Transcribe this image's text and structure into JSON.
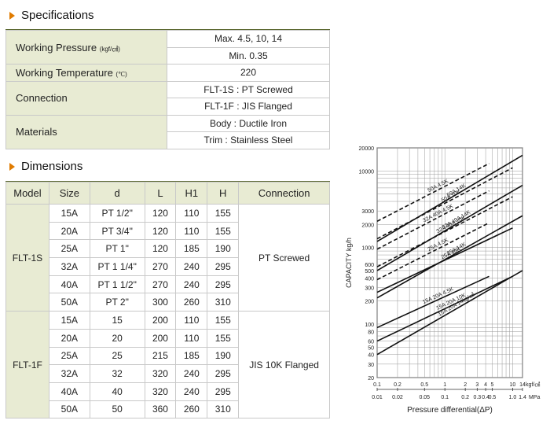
{
  "specifications": {
    "title": "Specifications",
    "rows": [
      {
        "label": "Working Pressure",
        "unit": "(kgf/㎠)",
        "values": [
          "Max. 4.5, 10, 14",
          "Min. 0.35"
        ]
      },
      {
        "label": "Working Temperature",
        "unit": "(℃)",
        "values": [
          "220"
        ]
      },
      {
        "label": "Connection",
        "unit": "",
        "values": [
          "FLT-1S : PT Screwed",
          "FLT-1F : JIS Flanged"
        ]
      },
      {
        "label": "Materials",
        "unit": "",
        "values": [
          "Body : Ductile Iron",
          "Trim : Stainless Steel"
        ]
      }
    ]
  },
  "dimensions": {
    "title": "Dimensions",
    "headers": [
      "Model",
      "Size",
      "d",
      "L",
      "H1",
      "H",
      "Connection"
    ],
    "groups": [
      {
        "model": "FLT-1S",
        "connection": "PT Screwed",
        "rows": [
          [
            "15A",
            "PT 1/2\"",
            "120",
            "110",
            "155"
          ],
          [
            "20A",
            "PT 3/4\"",
            "120",
            "110",
            "155"
          ],
          [
            "25A",
            "PT 1\"",
            "120",
            "185",
            "190"
          ],
          [
            "32A",
            "PT 1 1/4\"",
            "270",
            "240",
            "295"
          ],
          [
            "40A",
            "PT 1 1/2\"",
            "270",
            "240",
            "295"
          ],
          [
            "50A",
            "PT 2\"",
            "300",
            "260",
            "310"
          ]
        ]
      },
      {
        "model": "FLT-1F",
        "connection": "JIS 10K Flanged",
        "rows": [
          [
            "15A",
            "15",
            "200",
            "110",
            "155"
          ],
          [
            "20A",
            "20",
            "200",
            "110",
            "155"
          ],
          [
            "25A",
            "25",
            "215",
            "185",
            "190"
          ],
          [
            "32A",
            "32",
            "320",
            "240",
            "295"
          ],
          [
            "40A",
            "40",
            "320",
            "240",
            "295"
          ],
          [
            "50A",
            "50",
            "360",
            "260",
            "310"
          ]
        ]
      }
    ]
  },
  "chart_data": {
    "type": "line",
    "xlabel": "Pressure differential(ΔP)",
    "ylabel": "CAPACITY kg/h",
    "xscale": "log",
    "yscale": "log",
    "xlim": [
      0.1,
      14
    ],
    "ylim": [
      20,
      20000
    ],
    "grid": true,
    "x_ticks_kgf": [
      "0.1",
      "0.2",
      "0.5",
      "1",
      "2",
      "3",
      "4",
      "5",
      "10",
      "14"
    ],
    "x_unit_kgf": "kgf/㎠",
    "x_ticks_mpa": [
      "0.01",
      "0.02",
      "0.05",
      "0.1",
      "0.2",
      "0.3",
      "0.4",
      "0.5",
      "1.0",
      "1.4"
    ],
    "x_unit_mpa": "MPa",
    "y_ticks": [
      "20000",
      "10000",
      "3000",
      "2000",
      "1000",
      "600",
      "500",
      "400",
      "300",
      "200",
      "100",
      "80",
      "60",
      "50",
      "40",
      "30",
      "20"
    ],
    "series": [
      {
        "name": "50A 4.5K",
        "dashed": true,
        "x": [
          0.1,
          4.5
        ],
        "y": [
          2200,
          12500
        ]
      },
      {
        "name": "50A 10K",
        "dashed": true,
        "x": [
          0.1,
          10
        ],
        "y": [
          1300,
          11000
        ]
      },
      {
        "name": "32A 40A 4.5K",
        "dashed": true,
        "x": [
          0.1,
          4.5
        ],
        "y": [
          950,
          5500
        ]
      },
      {
        "name": "32A 40A 10K",
        "dashed": true,
        "x": [
          0.1,
          10
        ],
        "y": [
          560,
          4600
        ]
      },
      {
        "name": "25A 4.5K",
        "dashed": true,
        "x": [
          0.1,
          4.5
        ],
        "y": [
          380,
          2100
        ]
      },
      {
        "name": "50A 14K",
        "dashed": false,
        "x": [
          0.1,
          14
        ],
        "y": [
          1200,
          16000
        ]
      },
      {
        "name": "32A 40A 14K",
        "dashed": false,
        "x": [
          0.1,
          14
        ],
        "y": [
          500,
          6500
        ]
      },
      {
        "name": "25A 10K",
        "dashed": false,
        "x": [
          0.1,
          10
        ],
        "y": [
          260,
          1800
        ]
      },
      {
        "name": "25A 14K",
        "dashed": false,
        "x": [
          0.1,
          14
        ],
        "y": [
          220,
          2600
        ]
      },
      {
        "name": "15A 20A 4.5K",
        "dashed": false,
        "x": [
          0.1,
          4.5
        ],
        "y": [
          90,
          420
        ]
      },
      {
        "name": "15A 20A 10K",
        "dashed": false,
        "x": [
          0.1,
          10
        ],
        "y": [
          60,
          420
        ]
      },
      {
        "name": "15A 20A 14kg/㎠",
        "dashed": false,
        "x": [
          0.1,
          14
        ],
        "y": [
          40,
          500
        ]
      }
    ]
  }
}
